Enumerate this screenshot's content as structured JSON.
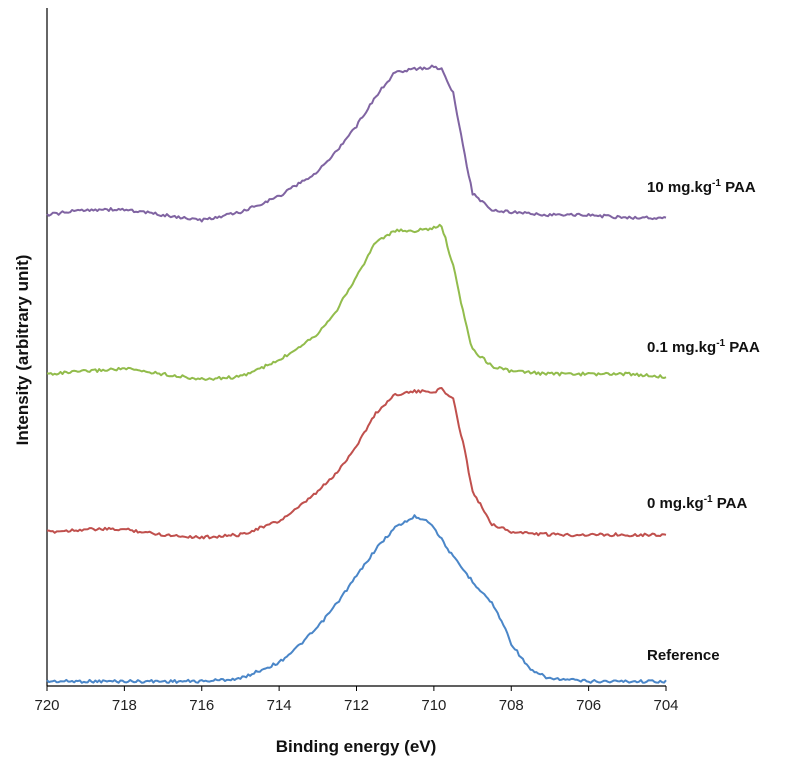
{
  "chart_data": {
    "type": "line",
    "xlabel": "Binding energy (eV)",
    "ylabel": "Intensity (arbitrary unit)",
    "xlim": [
      720,
      704
    ],
    "x_reversed": true,
    "x_ticks": [
      "720",
      "718",
      "716",
      "714",
      "712",
      "710",
      "708",
      "706",
      "704"
    ],
    "y_ticks_shown": false,
    "grid": false,
    "legend": "none (labels placed at right of each curve)",
    "series": [
      {
        "name": "Reference",
        "color": "#4a86c8",
        "label_parts": [
          "Reference"
        ],
        "x": [
          720,
          719,
          718,
          717,
          716,
          715,
          714.5,
          714,
          713.5,
          713,
          712.5,
          712,
          711.5,
          711,
          710.5,
          710.2,
          710,
          709.5,
          709,
          708.5,
          708.2,
          708,
          707.5,
          707,
          706,
          705,
          704
        ],
        "y": [
          0.01,
          0.01,
          0.01,
          0.01,
          0.01,
          0.02,
          0.05,
          0.08,
          0.14,
          0.21,
          0.3,
          0.4,
          0.5,
          0.58,
          0.62,
          0.61,
          0.58,
          0.47,
          0.38,
          0.3,
          0.22,
          0.15,
          0.05,
          0.02,
          0.01,
          0.01,
          0.01
        ]
      },
      {
        "name": "0 mg.kg-1 PAA",
        "color": "#c0504d",
        "label_parts": [
          "0 mg.kg",
          "-1",
          " PAA"
        ],
        "x": [
          720,
          719,
          718,
          717,
          716,
          715,
          714,
          713.5,
          713,
          712.5,
          712,
          711.5,
          711,
          710.5,
          710,
          709.8,
          709.5,
          709.2,
          709,
          708.5,
          708,
          707,
          706,
          705,
          704
        ],
        "y": [
          0.0,
          0.01,
          0.01,
          -0.01,
          -0.02,
          -0.01,
          0.04,
          0.09,
          0.15,
          0.22,
          0.32,
          0.44,
          0.51,
          0.52,
          0.52,
          0.53,
          0.49,
          0.3,
          0.15,
          0.03,
          0.0,
          -0.01,
          -0.01,
          -0.01,
          -0.01
        ]
      },
      {
        "name": "0.1 mg.kg-1 PAA",
        "color": "#92bc4c",
        "label_parts": [
          "0.1 mg.kg",
          "-1",
          " PAA"
        ],
        "x": [
          720,
          719,
          718,
          717,
          716,
          715,
          714,
          713,
          712.5,
          712,
          711.5,
          711,
          710.5,
          710,
          709.8,
          709.5,
          709.2,
          709,
          708.5,
          708,
          707,
          706,
          705,
          704
        ],
        "y": [
          0.0,
          0.01,
          0.02,
          0.0,
          -0.02,
          -0.01,
          0.05,
          0.15,
          0.24,
          0.36,
          0.49,
          0.53,
          0.53,
          0.54,
          0.55,
          0.4,
          0.2,
          0.09,
          0.03,
          0.01,
          0.0,
          0.0,
          0.0,
          -0.01
        ]
      },
      {
        "name": "10 mg.kg-1 PAA",
        "color": "#8064a2",
        "label_parts": [
          "10 mg.kg",
          "-1",
          " PAA"
        ],
        "x": [
          720,
          719,
          718,
          717,
          716,
          715,
          714,
          713,
          712.5,
          712,
          711.5,
          711,
          710.5,
          710,
          709.8,
          709.5,
          709.2,
          709,
          708.5,
          708,
          707,
          706,
          705,
          704
        ],
        "y": [
          0.0,
          0.02,
          0.02,
          0.0,
          -0.02,
          0.01,
          0.07,
          0.16,
          0.24,
          0.33,
          0.44,
          0.53,
          0.54,
          0.55,
          0.54,
          0.45,
          0.22,
          0.08,
          0.02,
          0.01,
          0.0,
          0.0,
          -0.01,
          -0.01
        ]
      }
    ]
  }
}
